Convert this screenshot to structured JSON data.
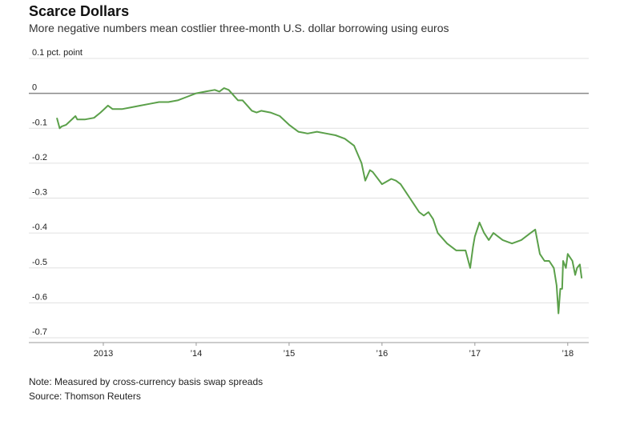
{
  "header": {
    "title": "Scarce Dollars",
    "subtitle": "More negative numbers mean costlier three-month U.S. dollar borrowing using euros"
  },
  "footer": {
    "note": "Note: Measured by cross-currency basis swap spreads",
    "source": "Source: Thomson Reuters"
  },
  "colors": {
    "line": "#5ba04a",
    "zero_line": "#888888",
    "grid": "#e0e0e0"
  },
  "chart_data": {
    "type": "line",
    "title": "Scarce Dollars",
    "subtitle": "More negative numbers mean costlier three-month U.S. dollar borrowing using euros",
    "y_unit_label": "0.1 pct. point",
    "ylim": [
      -0.7,
      0.1
    ],
    "y_ticks": [
      0.1,
      0,
      -0.1,
      -0.2,
      -0.3,
      -0.4,
      -0.5,
      -0.6,
      -0.7
    ],
    "y_tick_labels": [
      "0.1 pct. point",
      "0",
      "-0.1",
      "-0.2",
      "-0.3",
      "-0.4",
      "-0.5",
      "-0.6",
      "-0.7"
    ],
    "xlim": [
      2012.5,
      2018.2
    ],
    "x_ticks": [
      2013,
      2014,
      2015,
      2016,
      2017,
      2018
    ],
    "x_tick_labels": [
      "2013",
      "’14",
      "’15",
      "’16",
      "’17",
      "’18"
    ],
    "grid": true,
    "series": [
      {
        "x": [
          2012.5,
          2012.53,
          2012.55,
          2012.6,
          2012.7,
          2012.72,
          2012.8,
          2012.9,
          2012.97,
          2013.05,
          2013.1,
          2013.2,
          2013.3,
          2013.4,
          2013.5,
          2013.6,
          2013.7,
          2013.8,
          2013.9,
          2014.0,
          2014.1,
          2014.2,
          2014.25,
          2014.3,
          2014.35,
          2014.4,
          2014.45,
          2014.5,
          2014.6,
          2014.65,
          2014.7,
          2014.8,
          2014.9,
          2015.0,
          2015.1,
          2015.2,
          2015.3,
          2015.4,
          2015.5,
          2015.6,
          2015.7,
          2015.78,
          2015.82,
          2015.87,
          2015.9,
          2016.0,
          2016.1,
          2016.15,
          2016.2,
          2016.3,
          2016.4,
          2016.45,
          2016.5,
          2016.55,
          2016.6,
          2016.7,
          2016.8,
          2016.9,
          2016.95,
          2016.98,
          2017.0,
          2017.05,
          2017.1,
          2017.15,
          2017.2,
          2017.3,
          2017.4,
          2017.5,
          2017.6,
          2017.65,
          2017.7,
          2017.75,
          2017.8,
          2017.85,
          2017.88,
          2017.9,
          2017.92,
          2017.94,
          2017.95,
          2017.98,
          2018.0,
          2018.05,
          2018.08,
          2018.1,
          2018.13,
          2018.15
        ],
        "y": [
          -0.07,
          -0.1,
          -0.095,
          -0.09,
          -0.065,
          -0.075,
          -0.075,
          -0.07,
          -0.055,
          -0.035,
          -0.045,
          -0.045,
          -0.04,
          -0.035,
          -0.03,
          -0.025,
          -0.025,
          -0.02,
          -0.01,
          0.0,
          0.005,
          0.01,
          0.005,
          0.015,
          0.01,
          -0.005,
          -0.02,
          -0.02,
          -0.05,
          -0.055,
          -0.05,
          -0.055,
          -0.065,
          -0.09,
          -0.11,
          -0.115,
          -0.11,
          -0.115,
          -0.12,
          -0.13,
          -0.15,
          -0.2,
          -0.25,
          -0.22,
          -0.225,
          -0.26,
          -0.245,
          -0.25,
          -0.26,
          -0.3,
          -0.34,
          -0.35,
          -0.34,
          -0.36,
          -0.4,
          -0.43,
          -0.45,
          -0.45,
          -0.5,
          -0.44,
          -0.41,
          -0.37,
          -0.4,
          -0.42,
          -0.4,
          -0.42,
          -0.43,
          -0.42,
          -0.4,
          -0.39,
          -0.46,
          -0.48,
          -0.48,
          -0.5,
          -0.55,
          -0.63,
          -0.56,
          -0.56,
          -0.48,
          -0.5,
          -0.46,
          -0.48,
          -0.52,
          -0.5,
          -0.49,
          -0.53
        ]
      }
    ]
  }
}
